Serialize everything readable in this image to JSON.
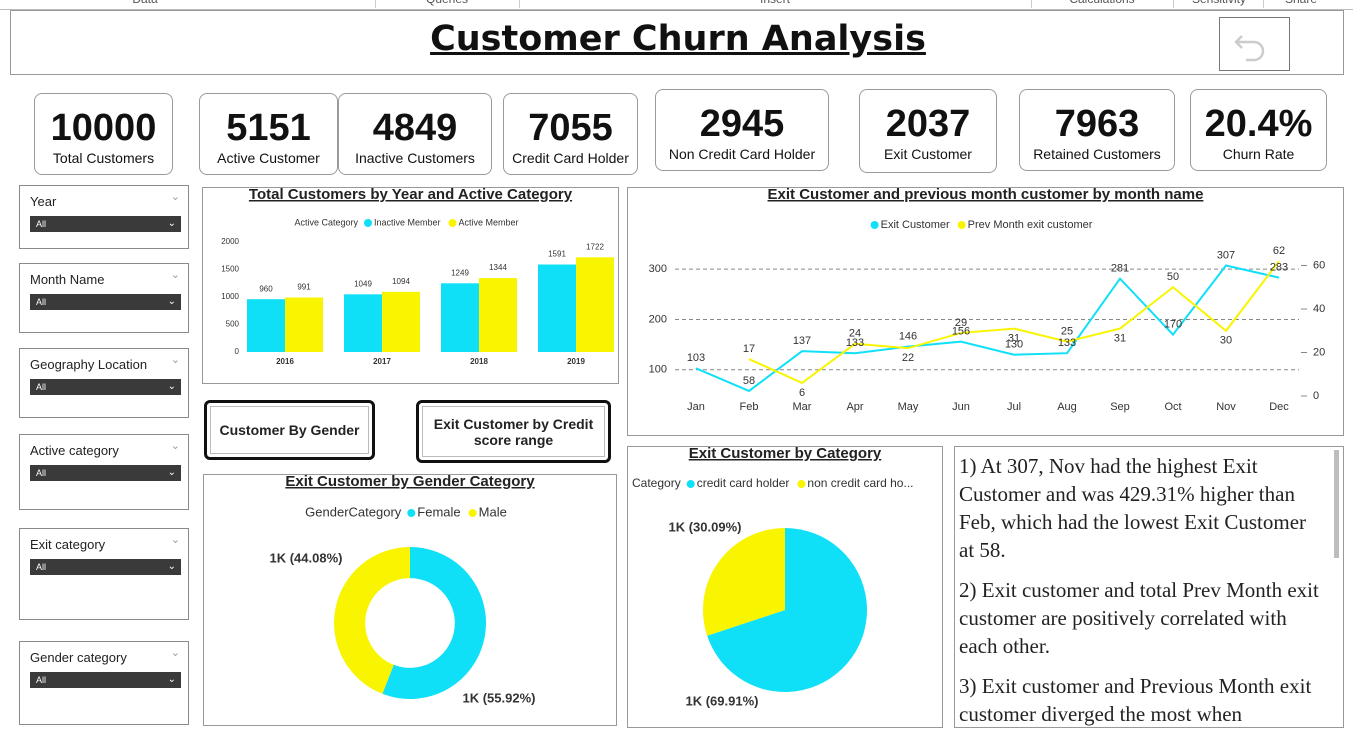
{
  "ribbon": {
    "tabs": [
      "Data",
      "Queries",
      "Insert",
      "Calculations",
      "Sensitivity",
      "Share"
    ]
  },
  "header": {
    "title": "Customer Churn Analysis"
  },
  "kpis": [
    {
      "value": "10000",
      "label": "Total Customers"
    },
    {
      "value": "5151",
      "label": "Active Customer"
    },
    {
      "value": "4849",
      "label": "Inactive Customers"
    },
    {
      "value": "7055",
      "label": "Credit Card Holder"
    },
    {
      "value": "2945",
      "label": "Non Credit Card Holder"
    },
    {
      "value": "2037",
      "label": "Exit Customer"
    },
    {
      "value": "7963",
      "label": "Retained Customers"
    },
    {
      "value": "20.4%",
      "label": "Churn Rate"
    }
  ],
  "slicers": [
    {
      "label": "Year",
      "selected": "All"
    },
    {
      "label": "Month Name",
      "selected": "All"
    },
    {
      "label": "Geography Location",
      "selected": "All"
    },
    {
      "label": "Active category",
      "selected": "All"
    },
    {
      "label": "Exit category",
      "selected": "All"
    },
    {
      "label": "Gender category",
      "selected": "All"
    }
  ],
  "buttons": [
    "Customer By Gender",
    "Exit Customer by Credit score range"
  ],
  "chart_data": [
    {
      "type": "bar",
      "title": "Total Customers by Year and Active Category",
      "legend_title": "Active Category",
      "categories": [
        "2016",
        "2017",
        "2018",
        "2019"
      ],
      "series": [
        {
          "name": "Inactive Member",
          "color": "#0fe0f8",
          "values": [
            960,
            1049,
            1249,
            1591
          ]
        },
        {
          "name": "Active Member",
          "color": "#f9f500",
          "values": [
            991,
            1094,
            1344,
            1722
          ]
        }
      ],
      "ylim": [
        0,
        2000
      ],
      "yticks": [
        0,
        500,
        1000,
        1500,
        2000
      ],
      "grid": false,
      "data_labels": true
    },
    {
      "type": "line",
      "title": "Exit Customer and previous month customer by month name",
      "categories": [
        "Jan",
        "Feb",
        "Mar",
        "Apr",
        "May",
        "Jun",
        "Jul",
        "Aug",
        "Sep",
        "Oct",
        "Nov",
        "Dec"
      ],
      "series": [
        {
          "name": "Exit Customer",
          "color": "#0fe0f8",
          "values": [
            103,
            58,
            137,
            133,
            146,
            156,
            130,
            133,
            281,
            170,
            307,
            283
          ]
        },
        {
          "name": "Prev Month exit customer",
          "color": "#f9f500",
          "axis": "y2",
          "values": [
            null,
            17,
            6,
            24,
            22,
            29,
            31,
            25,
            31,
            50,
            30,
            62
          ]
        }
      ],
      "ylim": [
        48,
        320
      ],
      "yticks": [
        100,
        200,
        300
      ],
      "y2lim": [
        0,
        63
      ],
      "y2ticks": [
        0,
        20,
        40,
        60
      ],
      "grid": true,
      "data_labels": true
    },
    {
      "type": "donut",
      "title": "Exit Customer by Gender Category",
      "legend_title": "GenderCategory",
      "categories": [
        "Female",
        "Male"
      ],
      "colors": [
        "#0fe0f8",
        "#f9f500"
      ],
      "values": [
        1139,
        898
      ],
      "value_labels": [
        "1K (55.92%)",
        "1K (44.08%)"
      ]
    },
    {
      "type": "pie",
      "title": "Exit Customer by Category",
      "legend_title": "Category",
      "categories": [
        "credit card holder",
        "non credit card ho..."
      ],
      "colors": [
        "#0fe0f8",
        "#f9f500"
      ],
      "values": [
        1424,
        613
      ],
      "value_labels": [
        "1K (69.91%)",
        "1K (30.09%)"
      ]
    }
  ],
  "insights": [
    "1) At 307, Nov had the highest Exit Customer and was 429.31% higher than Feb, which had the lowest Exit Customer at 58.",
    "2) Exit customer and total Prev Month exit customer are positively correlated with each other.",
    "3) Exit customer and Previous Month exit customer diverged the most when"
  ]
}
